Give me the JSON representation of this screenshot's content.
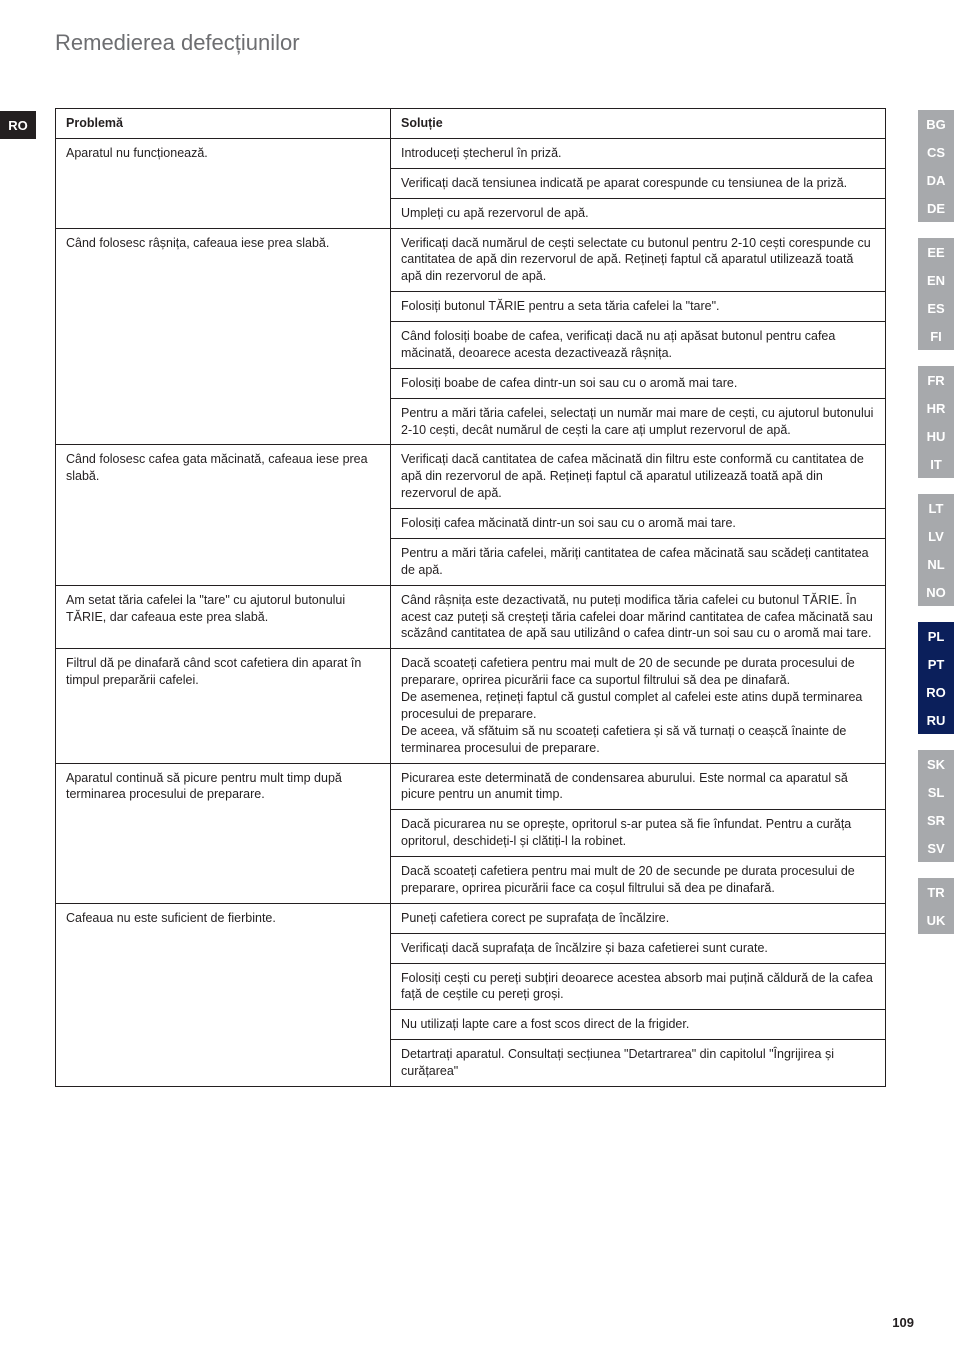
{
  "page": {
    "title": "Remedierea defecțiunilor",
    "number": "109"
  },
  "lang_badge_left": "RO",
  "lang_rail": [
    {
      "label": "BG",
      "bg": "#a7a9ac",
      "type": "item"
    },
    {
      "label": "CS",
      "bg": "#a7a9ac",
      "type": "item"
    },
    {
      "label": "DA",
      "bg": "#a7a9ac",
      "type": "item"
    },
    {
      "label": "DE",
      "bg": "#a7a9ac",
      "type": "item"
    },
    {
      "type": "spacer"
    },
    {
      "label": "EE",
      "bg": "#a7a9ac",
      "type": "item"
    },
    {
      "label": "EN",
      "bg": "#a7a9ac",
      "type": "item"
    },
    {
      "label": "ES",
      "bg": "#a7a9ac",
      "type": "item"
    },
    {
      "label": "FI",
      "bg": "#a7a9ac",
      "type": "item"
    },
    {
      "type": "spacer"
    },
    {
      "label": "FR",
      "bg": "#a7a9ac",
      "type": "item"
    },
    {
      "label": "HR",
      "bg": "#a7a9ac",
      "type": "item"
    },
    {
      "label": "HU",
      "bg": "#a7a9ac",
      "type": "item"
    },
    {
      "label": "IT",
      "bg": "#a7a9ac",
      "type": "item"
    },
    {
      "type": "spacer"
    },
    {
      "label": "LT",
      "bg": "#a7a9ac",
      "type": "item"
    },
    {
      "label": "LV",
      "bg": "#a7a9ac",
      "type": "item"
    },
    {
      "label": "NL",
      "bg": "#a7a9ac",
      "type": "item"
    },
    {
      "label": "NO",
      "bg": "#a7a9ac",
      "type": "item"
    },
    {
      "type": "spacer"
    },
    {
      "label": "PL",
      "bg": "#0b1f5b",
      "type": "item"
    },
    {
      "label": "PT",
      "bg": "#0b1f5b",
      "type": "item"
    },
    {
      "label": "RO",
      "bg": "#0b1f5b",
      "type": "item"
    },
    {
      "label": "RU",
      "bg": "#0b1f5b",
      "type": "item"
    },
    {
      "type": "spacer"
    },
    {
      "label": "SK",
      "bg": "#a7a9ac",
      "type": "item"
    },
    {
      "label": "SL",
      "bg": "#a7a9ac",
      "type": "item"
    },
    {
      "label": "SR",
      "bg": "#a7a9ac",
      "type": "item"
    },
    {
      "label": "SV",
      "bg": "#a7a9ac",
      "type": "item"
    },
    {
      "type": "spacer"
    },
    {
      "label": "TR",
      "bg": "#a7a9ac",
      "type": "item"
    },
    {
      "label": "UK",
      "bg": "#a7a9ac",
      "type": "item"
    }
  ],
  "table": {
    "headers": {
      "problem": "Problemă",
      "solution": "Soluție"
    },
    "groups": [
      {
        "problem": "Aparatul nu funcționează.",
        "solutions": [
          "Introduceți ștecherul în priză.",
          "Verificați dacă tensiunea indicată pe aparat corespunde cu tensiunea de la priză.",
          "Umpleți cu apă rezervorul de apă."
        ]
      },
      {
        "problem": "Când folosesc râșnița, cafeaua iese prea slabă.",
        "solutions": [
          "Verificați dacă numărul de cești selectate cu butonul pentru 2-10 cești corespunde cu cantitatea de apă din rezervorul de apă. Rețineți faptul că aparatul utilizează toată apă din rezervorul de apă.",
          "Folosiți butonul TĂRIE pentru a seta tăria cafelei la \"tare\".",
          "Când folosiți boabe de cafea, verificați dacă nu ați apăsat butonul pentru cafea măcinată, deoarece acesta dezactivează râșnița.",
          "Folosiți boabe de cafea dintr-un soi sau cu o aromă mai tare.",
          "Pentru a mări tăria cafelei, selectați un număr mai mare de cești,  cu ajutorul butonului 2-10 cești, decât numărul de cești la care ați umplut rezervorul de apă."
        ]
      },
      {
        "problem": "Când folosesc cafea gata măcinată, cafeaua iese prea slabă.",
        "solutions": [
          "Verificați dacă cantitatea de cafea măcinată din filtru este conformă cu cantitatea de apă din rezervorul de apă. Rețineți faptul că aparatul utilizează toată apă din rezervorul de apă.",
          "Folosiți cafea măcinată dintr-un soi sau cu o aromă mai tare.",
          "Pentru a mări tăria cafelei, măriți cantitatea de cafea măcinată sau scădeți cantitatea de apă."
        ]
      },
      {
        "problem": "Am setat tăria cafelei la \"tare\" cu ajutorul butonului TĂRIE, dar cafeaua este prea slabă.",
        "solutions": [
          "Când râșnița este dezactivată, nu puteți modifica tăria cafelei cu butonul TĂRIE. În acest caz puteți să creșteți tăria cafelei doar mărind cantitatea de cafea măcinată sau scăzând cantitatea de apă sau utilizând o cafea dintr-un soi sau cu o aromă mai tare."
        ]
      },
      {
        "problem": "Filtrul dă pe dinafară când scot cafetiera din aparat în timpul preparării cafelei.",
        "solutions": [
          "Dacă scoateți cafetiera pentru mai mult de 20 de secunde pe durata procesului de preparare, oprirea picurării face ca suportul filtrului să dea pe dinafară.\nDe asemenea, rețineți faptul că gustul complet al cafelei este atins după terminarea procesului de preparare.\nDe aceea, vă sfătuim să nu scoateți cafetiera și să vă turnați o ceașcă înainte de terminarea procesului de preparare."
        ]
      },
      {
        "problem": "Aparatul continuă să picure pentru mult timp după terminarea procesului de preparare.",
        "solutions": [
          "Picurarea este determinată de condensarea aburului. Este normal ca aparatul să picure pentru un anumit timp.",
          "Dacă picurarea nu se oprește, opritorul s-ar putea să fie înfundat. Pentru a curăța opritorul, deschideți-l și clătiți-l la robinet.",
          "Dacă scoateți cafetiera pentru mai mult de 20 de secunde pe durata procesului de preparare, oprirea picurării face ca coșul filtrului să dea pe dinafară."
        ]
      },
      {
        "problem": "Cafeaua nu este suficient de fierbinte.",
        "solutions": [
          "Puneți cafetiera corect pe suprafața de încălzire.",
          "Verificați dacă suprafața de încălzire și baza cafetierei sunt curate.",
          "Folosiți cești cu pereți subțiri deoarece acestea absorb mai puțină căldură de la cafea față de ceștile cu pereți groși.",
          "Nu utilizați lapte care a fost scos direct de la frigider.",
          "Detartrați aparatul. Consultați secțiunea \"Detartrarea\" din capitolul \"Îngrijirea și curățarea\""
        ]
      }
    ]
  }
}
